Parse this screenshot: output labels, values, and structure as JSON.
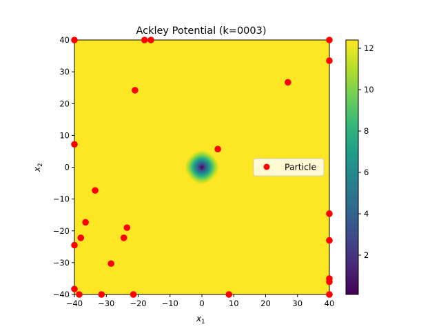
{
  "chart_data": {
    "type": "scatter",
    "title": "Ackley Potential (k=0003)",
    "xlabel": "x",
    "xlabel_sub": "1",
    "ylabel": "x",
    "ylabel_sub": "2",
    "xlim": [
      -40,
      40
    ],
    "ylim": [
      -40,
      40
    ],
    "xticks": [
      -40,
      -30,
      -20,
      -10,
      0,
      10,
      20,
      30,
      40
    ],
    "yticks": [
      -40,
      -30,
      -20,
      -10,
      0,
      10,
      20,
      30,
      40
    ],
    "xtick_labels": [
      "−40",
      "−30",
      "−20",
      "−10",
      "0",
      "10",
      "20",
      "30",
      "40"
    ],
    "ytick_labels": [
      "−40",
      "−30",
      "−20",
      "−10",
      "0",
      "10",
      "20",
      "30",
      "40"
    ],
    "background": "heatmap of the Ackley function (viridis colormap), minimum at (0, 0)",
    "colorbar": {
      "colormap": "viridis",
      "range": [
        0.1,
        12.4
      ],
      "ticks": [
        2,
        4,
        6,
        8,
        10,
        12
      ],
      "tick_labels": [
        "2",
        "4",
        "6",
        "8",
        "10",
        "12"
      ]
    },
    "legend": {
      "position": "center-right",
      "entries": [
        "Particle"
      ]
    },
    "series": [
      {
        "name": "Particle",
        "color": "#ff0000",
        "points": [
          [
            -40,
            40
          ],
          [
            -18,
            40
          ],
          [
            -16,
            40
          ],
          [
            40,
            40
          ],
          [
            40,
            33.5
          ],
          [
            27,
            26.7
          ],
          [
            -21,
            24.2
          ],
          [
            -40,
            7.2
          ],
          [
            5,
            5.7
          ],
          [
            -33.5,
            -7.3
          ],
          [
            -36.5,
            -17.3
          ],
          [
            -23.5,
            -19
          ],
          [
            -38,
            -22.2
          ],
          [
            -24.5,
            -22.2
          ],
          [
            -40,
            -24.5
          ],
          [
            -28.5,
            -30.3
          ],
          [
            40,
            -14.6
          ],
          [
            40,
            -23
          ],
          [
            -40,
            -38.3
          ],
          [
            -38.5,
            -40
          ],
          [
            -31.5,
            -40
          ],
          [
            -21.5,
            -40
          ],
          [
            8.5,
            -40
          ],
          [
            40,
            -35
          ],
          [
            40,
            -36
          ],
          [
            40,
            -40
          ]
        ]
      }
    ]
  }
}
